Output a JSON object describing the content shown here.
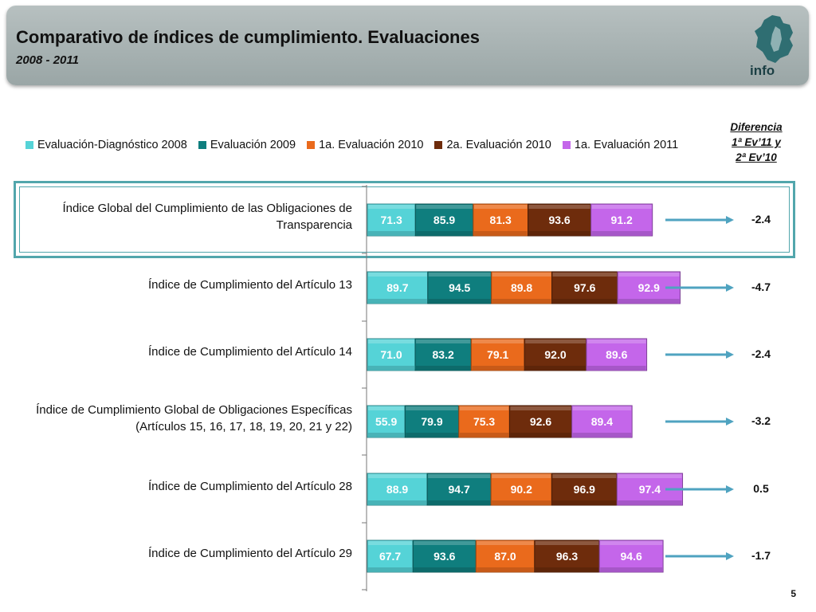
{
  "header": {
    "title": "Comparativo de índices de cumplimiento. Evaluaciones",
    "subtitle": "2008 - 2011",
    "logo_text": "info",
    "logo_icon": "infodf-logo-icon"
  },
  "colors": {
    "header_bg": "#a7b1b1",
    "highlight_border": "#52a6ac",
    "arrow": "#4fa3c0",
    "series": [
      "#55d3d7",
      "#0f7e7e",
      "#ea6a1c",
      "#6e2c0c",
      "#c466ea"
    ]
  },
  "diff_header": [
    "Diferencia",
    "1ª Ev’11 y",
    "2ª Ev’10"
  ],
  "page_number": "5",
  "chart_data": {
    "type": "bar",
    "orientation": "horizontal",
    "stacked": true,
    "categories": [
      [
        "Índice Global del Cumplimiento de las Obligaciones de",
        "Transparencia"
      ],
      [
        "Índice de Cumplimiento del Artículo 13"
      ],
      [
        "Índice de Cumplimiento del Artículo 14"
      ],
      [
        "Índice de Cumplimiento Global de Obligaciones Específicas",
        "(Artículos 15, 16, 17, 18, 19, 20, 21 y 22)"
      ],
      [
        "Índice de Cumplimiento del Artículo 28"
      ],
      [
        "Índice de Cumplimiento del Artículo 29"
      ]
    ],
    "series": [
      {
        "name": "Evaluación-Diagnóstico 2008",
        "color": "#55d3d7",
        "values": [
          71.3,
          89.7,
          71.0,
          55.9,
          88.9,
          67.7
        ]
      },
      {
        "name": "Evaluación 2009",
        "color": "#0f7e7e",
        "values": [
          85.9,
          94.5,
          83.2,
          79.9,
          94.7,
          93.6
        ]
      },
      {
        "name": "1a. Evaluación 2010",
        "color": "#ea6a1c",
        "values": [
          81.3,
          89.8,
          79.1,
          75.3,
          90.2,
          87.0
        ]
      },
      {
        "name": "2a. Evaluación 2010",
        "color": "#6e2c0c",
        "values": [
          93.6,
          97.6,
          92.0,
          92.6,
          96.9,
          96.3
        ]
      },
      {
        "name": "1a. Evaluación 2011",
        "color": "#c466ea",
        "values": [
          91.2,
          92.9,
          89.6,
          89.4,
          97.4,
          94.6
        ]
      }
    ],
    "value_labels": [
      [
        "71.3",
        "85.9",
        "81.3",
        "93.6",
        "91.2"
      ],
      [
        "89.7",
        "94.5",
        "89.8",
        "97.6",
        "92.9"
      ],
      [
        "71.0",
        "83.2",
        "79.1",
        "92.0",
        "89.6"
      ],
      [
        "55.9",
        "79.9",
        "75.3",
        "92.6",
        "89.4"
      ],
      [
        "88.9",
        "94.7",
        "90.2",
        "96.9",
        "97.4"
      ],
      [
        "67.7",
        "93.6",
        "87.0",
        "96.3",
        "94.6"
      ]
    ],
    "differences": [
      "-2.4",
      "-4.7",
      "-2.4",
      "-3.2",
      "0.5",
      "-1.7"
    ],
    "highlighted_category": 0,
    "legend_position": "top",
    "grid": false
  }
}
